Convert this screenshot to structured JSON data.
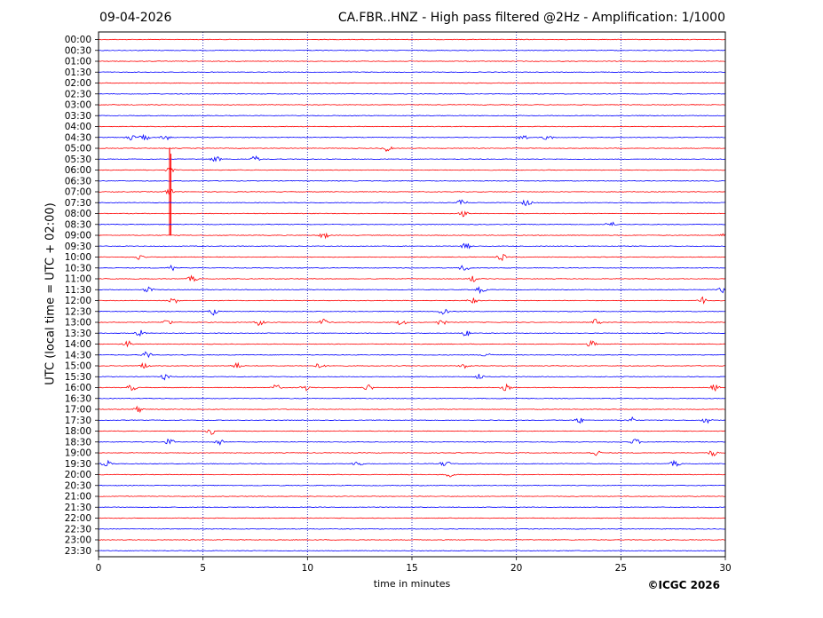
{
  "header": {
    "date": "09-04-2026",
    "title": "CA.FBR..HNZ - High pass filtered @2Hz - Amplification: 1/1000"
  },
  "footer": {
    "copyright": "©ICGC 2026"
  },
  "colors": {
    "trace_a": "#ff0000",
    "trace_b": "#0000ff",
    "grid": "#0000aa",
    "axes": "#000000"
  },
  "chart_data": {
    "type": "line",
    "title": "CA.FBR..HNZ - High pass filtered @2Hz - Amplification: 1/1000",
    "xlabel": "time in minutes",
    "ylabel": "UTC (local time = UTC + 02:00)",
    "xlim": [
      0,
      30
    ],
    "x_ticks": [
      0,
      5,
      10,
      15,
      20,
      25,
      30
    ],
    "grid": "vertical dotted lines at 5-minute ticks",
    "row_labels": [
      "00:00",
      "00:30",
      "01:00",
      "01:30",
      "02:00",
      "02:30",
      "03:00",
      "03:30",
      "04:00",
      "04:30",
      "05:00",
      "05:30",
      "06:00",
      "06:30",
      "07:00",
      "07:30",
      "08:00",
      "08:30",
      "09:00",
      "09:30",
      "10:00",
      "10:30",
      "11:00",
      "11:30",
      "12:00",
      "12:30",
      "13:00",
      "13:30",
      "14:00",
      "14:30",
      "15:00",
      "15:30",
      "16:00",
      "16:30",
      "17:00",
      "17:30",
      "18:00",
      "18:30",
      "19:00",
      "19:30",
      "20:00",
      "20:30",
      "21:00",
      "21:30",
      "22:00",
      "22:30",
      "23:00",
      "23:30"
    ],
    "row_colors": "alternating red (00:00, 01:00, ...) and blue (00:30, 01:30, ...)",
    "events": [
      {
        "row": "04:30",
        "minutes": [
          1.5,
          2.2,
          3.2,
          20.3,
          21.5
        ]
      },
      {
        "row": "05:00",
        "minutes": [
          13.8
        ]
      },
      {
        "row": "05:30",
        "minutes": [
          5.6,
          7.5
        ]
      },
      {
        "row": "06:00",
        "minutes": [
          3.4
        ]
      },
      {
        "row": "07:00",
        "minutes": [
          3.4
        ],
        "note": "large-amplitude signal, trace clipped"
      },
      {
        "row": "07:30",
        "minutes": [
          17.4,
          20.5
        ]
      },
      {
        "row": "08:00",
        "minutes": [
          17.5
        ]
      },
      {
        "row": "08:30",
        "minutes": [
          24.5
        ]
      },
      {
        "row": "09:00",
        "minutes": [
          10.8,
          30
        ]
      },
      {
        "row": "09:30",
        "minutes": [
          17.6
        ]
      },
      {
        "row": "10:00",
        "minutes": [
          2.0,
          19.3
        ]
      },
      {
        "row": "10:30",
        "minutes": [
          3.5,
          17.5
        ]
      },
      {
        "row": "11:00",
        "minutes": [
          4.5,
          17.9
        ]
      },
      {
        "row": "11:30",
        "minutes": [
          2.4,
          18.3,
          29.9
        ]
      },
      {
        "row": "12:00",
        "minutes": [
          3.6,
          17.9,
          28.9
        ]
      },
      {
        "row": "12:30",
        "minutes": [
          5.5,
          16.5
        ]
      },
      {
        "row": "13:00",
        "minutes": [
          3.3,
          7.7,
          10.8,
          14.5,
          16.4,
          23.8
        ]
      },
      {
        "row": "13:30",
        "minutes": [
          2.0,
          17.6
        ]
      },
      {
        "row": "14:00",
        "minutes": [
          1.4,
          23.6
        ]
      },
      {
        "row": "14:30",
        "minutes": [
          2.3,
          18.6
        ]
      },
      {
        "row": "15:00",
        "minutes": [
          2.2,
          6.6,
          10.6,
          17.5
        ]
      },
      {
        "row": "15:30",
        "minutes": [
          3.2,
          18.2
        ]
      },
      {
        "row": "16:00",
        "minutes": [
          1.6,
          8.5,
          9.9,
          12.9,
          19.5,
          29.5
        ]
      },
      {
        "row": "17:00",
        "minutes": [
          1.9
        ]
      },
      {
        "row": "17:30",
        "minutes": [
          23.0,
          25.5,
          29.1
        ]
      },
      {
        "row": "18:00",
        "minutes": [
          5.4
        ]
      },
      {
        "row": "18:30",
        "minutes": [
          3.4,
          5.8,
          25.7
        ]
      },
      {
        "row": "19:00",
        "minutes": [
          23.8,
          29.4
        ]
      },
      {
        "row": "19:30",
        "minutes": [
          0.4,
          12.4,
          16.6,
          27.6
        ]
      },
      {
        "row": "20:00",
        "minutes": [
          16.8
        ]
      }
    ]
  }
}
